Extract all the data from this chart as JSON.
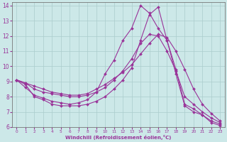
{
  "xlabel": "Windchill (Refroidissement éolien,°C)",
  "bg_color": "#cce8e8",
  "line_color": "#993399",
  "grid_color": "#aacccc",
  "xlim": [
    -0.5,
    23.5
  ],
  "ylim": [
    6,
    14.2
  ],
  "xticks": [
    0,
    1,
    2,
    3,
    4,
    5,
    6,
    7,
    8,
    9,
    10,
    11,
    12,
    13,
    14,
    15,
    16,
    17,
    18,
    19,
    20,
    21,
    22,
    23
  ],
  "yticks": [
    6,
    7,
    8,
    9,
    10,
    11,
    12,
    13,
    14
  ],
  "series": [
    {
      "x": [
        0,
        1,
        2,
        3,
        4,
        5,
        6,
        7,
        8,
        9,
        10,
        11,
        12,
        13,
        14,
        15,
        16,
        17,
        18,
        19,
        20,
        21,
        22,
        23
      ],
      "y": [
        9.1,
        8.8,
        8.0,
        7.8,
        7.5,
        7.4,
        7.4,
        7.4,
        7.5,
        7.7,
        8.0,
        8.5,
        9.1,
        9.9,
        11.7,
        13.4,
        13.9,
        11.7,
        9.8,
        7.5,
        7.2,
        6.8,
        6.3,
        6.1
      ]
    },
    {
      "x": [
        0,
        1,
        2,
        3,
        4,
        5,
        6,
        7,
        8,
        9,
        10,
        11,
        12,
        13,
        14,
        15,
        16,
        17,
        18,
        19,
        20,
        21,
        22,
        23
      ],
      "y": [
        9.1,
        8.6,
        8.1,
        7.9,
        7.7,
        7.6,
        7.5,
        7.6,
        7.8,
        8.3,
        9.5,
        10.4,
        11.7,
        12.5,
        14.0,
        13.5,
        12.5,
        11.7,
        9.5,
        7.4,
        7.0,
        6.8,
        6.4,
        6.2
      ]
    },
    {
      "x": [
        0,
        1,
        2,
        3,
        4,
        5,
        6,
        7,
        8,
        9,
        10,
        11,
        12,
        13,
        14,
        15,
        16,
        17,
        18,
        19,
        20,
        21,
        22,
        23
      ],
      "y": [
        9.1,
        8.9,
        8.5,
        8.3,
        8.2,
        8.1,
        8.0,
        8.0,
        8.1,
        8.3,
        8.6,
        9.1,
        9.7,
        10.5,
        11.5,
        12.1,
        12.0,
        11.0,
        9.7,
        8.0,
        7.5,
        7.0,
        6.6,
        6.3
      ]
    },
    {
      "x": [
        0,
        1,
        2,
        3,
        4,
        5,
        6,
        7,
        8,
        9,
        10,
        11,
        12,
        13,
        14,
        15,
        16,
        17,
        18,
        19,
        20,
        21,
        22,
        23
      ],
      "y": [
        9.1,
        8.9,
        8.7,
        8.5,
        8.3,
        8.2,
        8.1,
        8.1,
        8.2,
        8.5,
        8.8,
        9.2,
        9.6,
        10.1,
        10.8,
        11.5,
        12.1,
        11.9,
        11.0,
        9.8,
        8.5,
        7.5,
        6.9,
        6.4
      ]
    }
  ]
}
